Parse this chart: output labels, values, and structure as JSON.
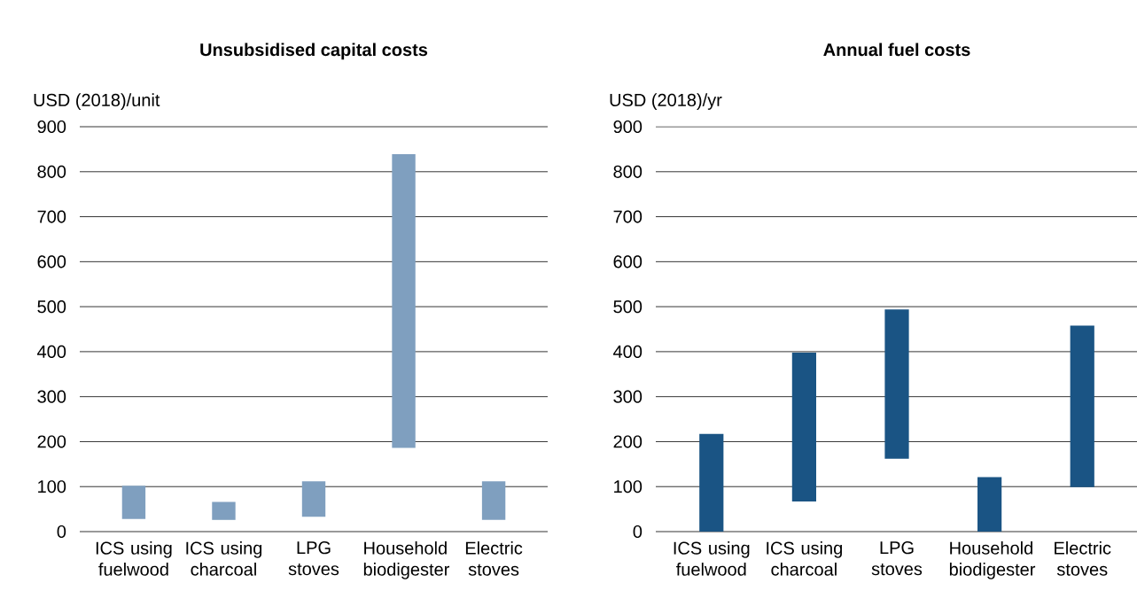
{
  "chart_data": [
    {
      "type": "bar",
      "title": "Unsubsidised capital costs",
      "ylabel": "USD (2018)/unit",
      "categories": [
        "ICS using fuelwood",
        "ICS using charcoal",
        "LPG stoves",
        "Household biodigester",
        "Electric stoves"
      ],
      "base": [
        28,
        26,
        33,
        186,
        26
      ],
      "values": [
        74,
        40,
        79,
        653,
        86
      ],
      "color": "#7f9fbf",
      "ylim": [
        0,
        900
      ],
      "yticks": [
        0,
        100,
        200,
        300,
        400,
        500,
        600,
        700,
        800,
        900
      ],
      "grid": "y"
    },
    {
      "type": "bar",
      "title": "Annual fuel costs",
      "ylabel": "USD (2018)/yr",
      "categories": [
        "ICS using fuelwood",
        "ICS using charcoal",
        "LPG stoves",
        "Household biodigester",
        "Electric stoves"
      ],
      "base": [
        0,
        67,
        162,
        0,
        99
      ],
      "values": [
        217,
        331,
        332,
        121,
        359
      ],
      "color": "#1a5484",
      "ylim": [
        0,
        900
      ],
      "yticks": [
        0,
        100,
        200,
        300,
        400,
        500,
        600,
        700,
        800,
        900
      ],
      "grid": "y"
    }
  ]
}
